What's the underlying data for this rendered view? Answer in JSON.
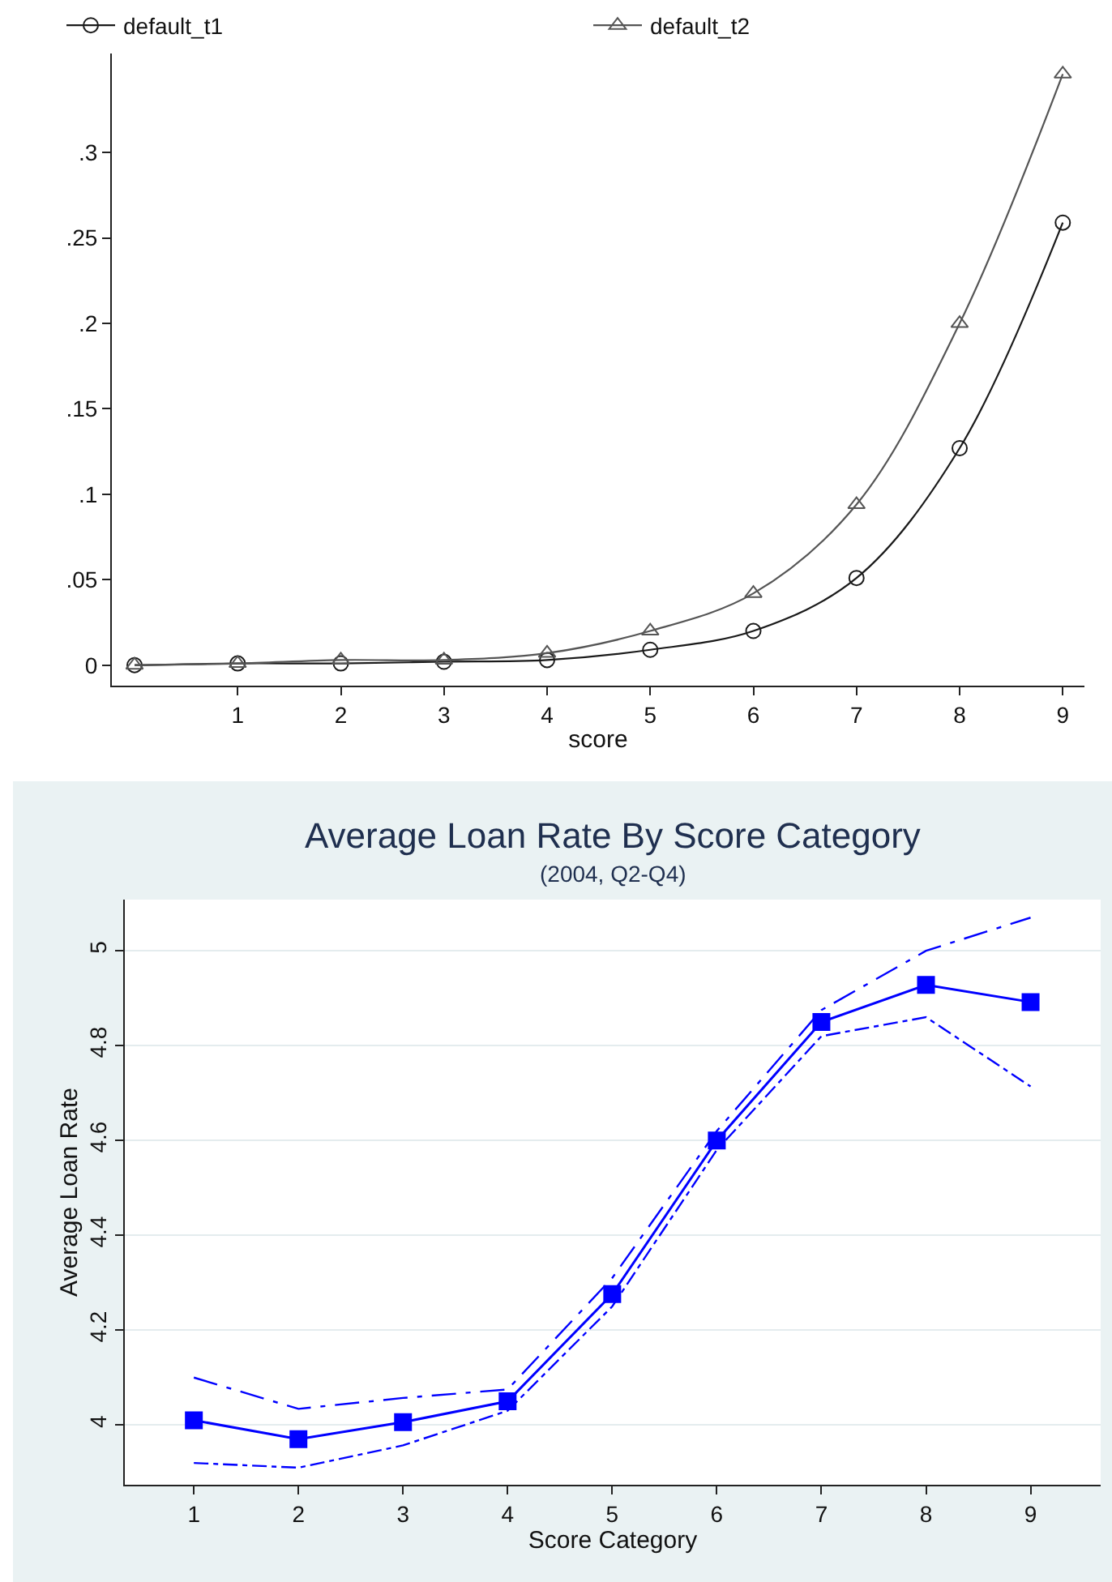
{
  "chart_data": [
    {
      "type": "line",
      "xlabel": "score",
      "x": [
        0,
        1,
        2,
        3,
        4,
        5,
        6,
        7,
        8,
        9
      ],
      "xlim": [
        -0.22,
        9.21
      ],
      "xticks": [
        1,
        2,
        3,
        4,
        5,
        6,
        7,
        8,
        9
      ],
      "ylim": [
        -0.012,
        0.358
      ],
      "yticks": [
        {
          "value": 0,
          "label": "0"
        },
        {
          "value": 0.05,
          "label": ".05"
        },
        {
          "value": 0.1,
          "label": ".1"
        },
        {
          "value": 0.15,
          "label": ".15"
        },
        {
          "value": 0.2,
          "label": ".2"
        },
        {
          "value": 0.25,
          "label": ".25"
        },
        {
          "value": 0.3,
          "label": ".3"
        }
      ],
      "grid": false,
      "legend": "top",
      "series": [
        {
          "name": "default_t1",
          "color": "#1a1a1a",
          "marker": "circle",
          "values": [
            0,
            0.001,
            0.001,
            0.002,
            0.003,
            0.009,
            0.02,
            0.051,
            0.127,
            0.259
          ]
        },
        {
          "name": "default_t2",
          "color": "#555555",
          "marker": "triangle",
          "values": [
            0,
            0.001,
            0.003,
            0.003,
            0.007,
            0.02,
            0.042,
            0.094,
            0.2,
            0.346
          ]
        }
      ]
    },
    {
      "type": "line",
      "title": "Average Loan Rate By Score Category",
      "subtitle": "(2004, Q2-Q4)",
      "xlabel": "Score Category",
      "ylabel": "Average Loan Rate",
      "x": [
        1,
        2,
        3,
        4,
        5,
        6,
        7,
        8,
        9
      ],
      "xlim": [
        0.34,
        9.67
      ],
      "xticks": [
        1,
        2,
        3,
        4,
        5,
        6,
        7,
        8,
        9
      ],
      "ylim": [
        3.874,
        5.108
      ],
      "yticks": [
        4,
        4.2,
        4.4,
        4.6,
        4.8,
        5
      ],
      "grid": "y",
      "legend": false,
      "marker": "square",
      "line_style": "solid",
      "series": [
        {
          "color": "#0000ff",
          "values": [
            4.01,
            3.97,
            4.006,
            4.05,
            4.276,
            4.6,
            4.85,
            4.928,
            4.892
          ]
        },
        {
          "color": "#0000ff",
          "marker": "none",
          "line_style": "dashed",
          "values": [
            4.1,
            4.034,
            4.057,
            4.075,
            4.31,
            4.62,
            4.875,
            5.0,
            5.07
          ]
        },
        {
          "color": "#0000ff",
          "marker": "none",
          "line_style": "dashed",
          "values": [
            3.92,
            3.91,
            3.957,
            4.03,
            4.25,
            4.58,
            4.82,
            4.86,
            4.714
          ]
        }
      ]
    }
  ]
}
